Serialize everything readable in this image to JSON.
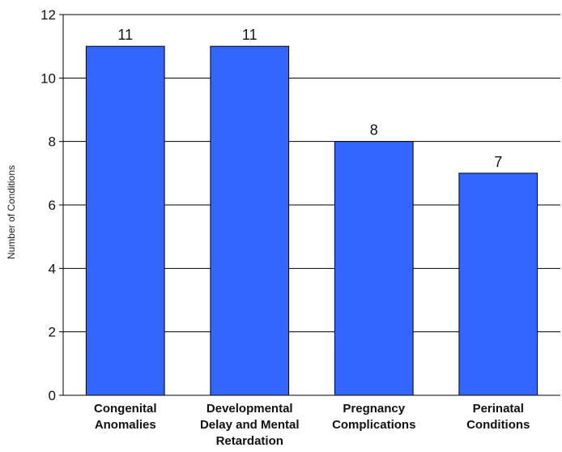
{
  "chart_data": {
    "type": "bar",
    "title": "",
    "xlabel": "",
    "ylabel": "Number of Conditions",
    "ylim": [
      0,
      12
    ],
    "yticks": [
      0,
      2,
      4,
      6,
      8,
      10,
      12
    ],
    "grid": true,
    "legend": "none",
    "categories": [
      [
        "Congenital",
        "Anomalies"
      ],
      [
        "Developmental",
        "Delay and Mental",
        "Retardation"
      ],
      [
        "Pregnancy",
        "Complications"
      ],
      [
        "Perinatal",
        "Conditions"
      ]
    ],
    "values": [
      11,
      11,
      8,
      7
    ],
    "bar_color": "#3366FF",
    "bar_border_color": "#000000"
  }
}
